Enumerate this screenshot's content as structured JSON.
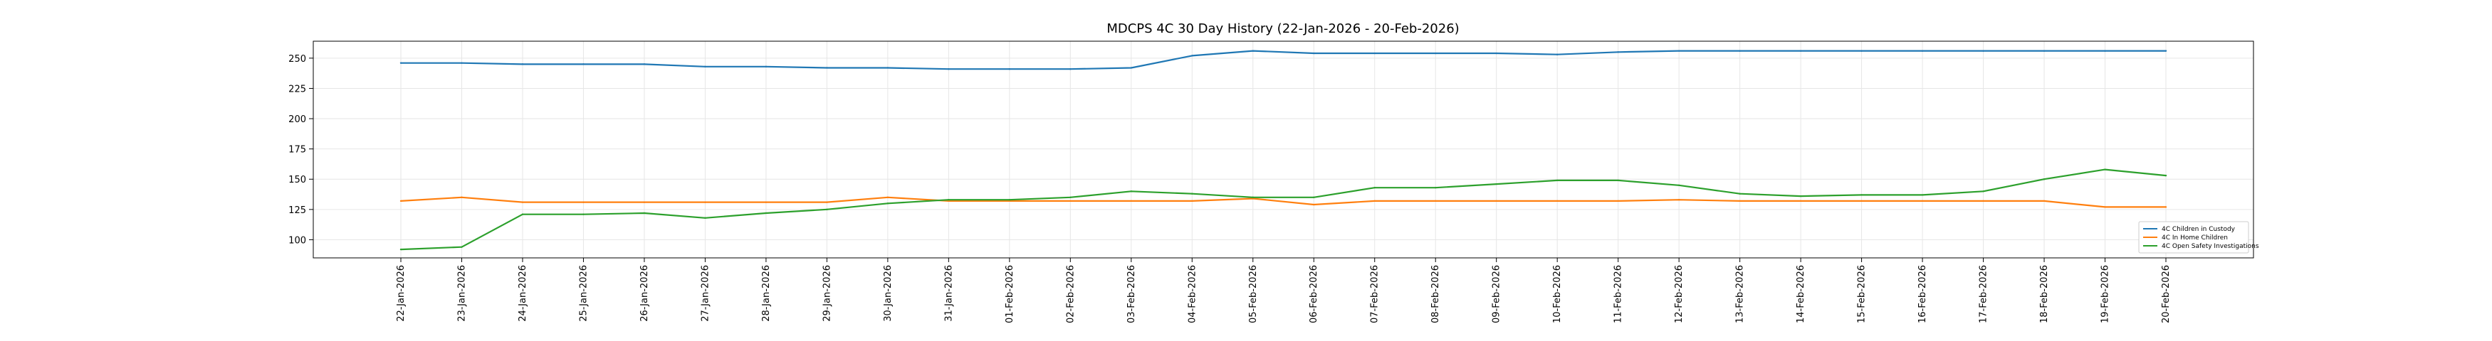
{
  "chart_data": {
    "type": "line",
    "title": "MDCPS 4C 30 Day History (22-Jan-2026 - 20-Feb-2026)",
    "xlabel": "",
    "ylabel": "",
    "ylim": [
      85,
      264
    ],
    "yticks": [
      100,
      125,
      150,
      175,
      200,
      225,
      250
    ],
    "grid": true,
    "legend_position": "lower right",
    "categories": [
      "22-Jan-2026",
      "23-Jan-2026",
      "24-Jan-2026",
      "25-Jan-2026",
      "26-Jan-2026",
      "27-Jan-2026",
      "28-Jan-2026",
      "29-Jan-2026",
      "30-Jan-2026",
      "31-Jan-2026",
      "01-Feb-2026",
      "02-Feb-2026",
      "03-Feb-2026",
      "04-Feb-2026",
      "05-Feb-2026",
      "06-Feb-2026",
      "07-Feb-2026",
      "08-Feb-2026",
      "09-Feb-2026",
      "10-Feb-2026",
      "11-Feb-2026",
      "12-Feb-2026",
      "13-Feb-2026",
      "14-Feb-2026",
      "15-Feb-2026",
      "16-Feb-2026",
      "17-Feb-2026",
      "18-Feb-2026",
      "19-Feb-2026",
      "20-Feb-2026"
    ],
    "series": [
      {
        "name": "4C Children in Custody",
        "color": "#1f77b4",
        "values": [
          246,
          246,
          245,
          245,
          245,
          243,
          243,
          242,
          242,
          241,
          241,
          241,
          242,
          252,
          256,
          254,
          254,
          254,
          254,
          253,
          255,
          256,
          256,
          256,
          256,
          256,
          256,
          256,
          256,
          256
        ]
      },
      {
        "name": "4C In Home Children",
        "color": "#ff7f0e",
        "values": [
          132,
          135,
          131,
          131,
          131,
          131,
          131,
          131,
          135,
          132,
          132,
          132,
          132,
          132,
          134,
          129,
          132,
          132,
          132,
          132,
          132,
          133,
          132,
          132,
          132,
          132,
          132,
          132,
          127,
          127
        ]
      },
      {
        "name": "4C Open Safety Investigations",
        "color": "#2ca02c",
        "values": [
          92,
          94,
          121,
          121,
          122,
          118,
          122,
          125,
          130,
          133,
          133,
          135,
          140,
          138,
          135,
          135,
          143,
          143,
          146,
          149,
          149,
          145,
          138,
          136,
          137,
          137,
          140,
          150,
          158,
          153
        ]
      }
    ]
  }
}
